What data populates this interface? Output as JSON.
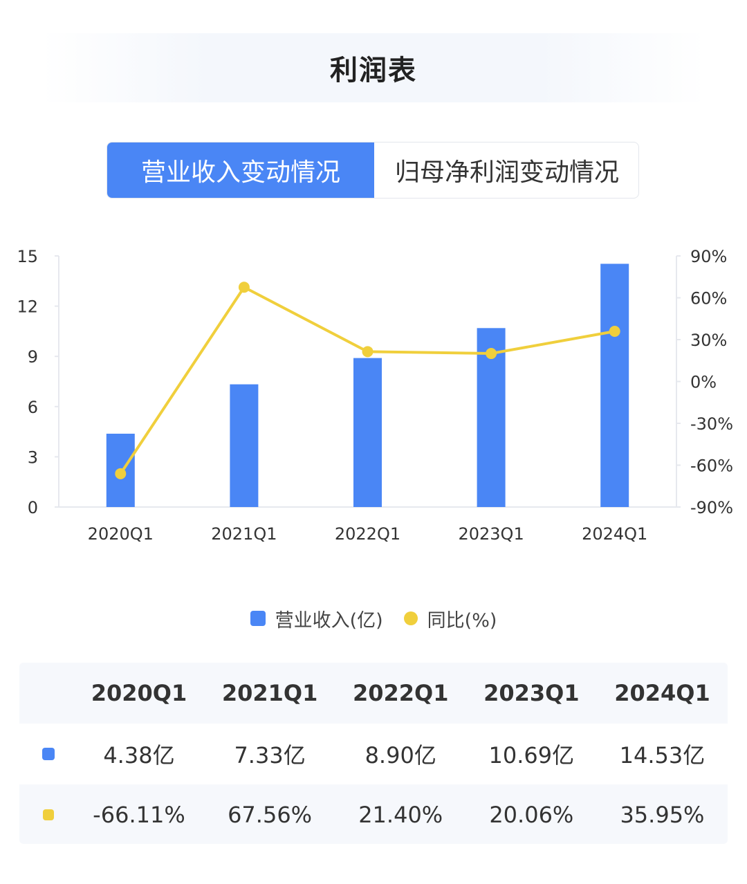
{
  "header": {
    "title": "利润表"
  },
  "tabs": [
    {
      "label": "营业收入变动情况",
      "active": true
    },
    {
      "label": "归母净利润变动情况",
      "active": false
    }
  ],
  "colors": {
    "accent": "#4a86f5",
    "bar": "#4a86f5",
    "line": "#f0cf3c"
  },
  "chart_data": {
    "type": "bar",
    "categories": [
      "2020Q1",
      "2021Q1",
      "2022Q1",
      "2023Q1",
      "2024Q1"
    ],
    "series": [
      {
        "name": "营业收入(亿)",
        "type": "bar",
        "axis": "left",
        "values": [
          4.38,
          7.33,
          8.9,
          10.69,
          14.53
        ]
      },
      {
        "name": "同比(%)",
        "type": "line",
        "axis": "right",
        "values": [
          -66.11,
          67.56,
          21.4,
          20.06,
          35.95
        ]
      }
    ],
    "left_axis": {
      "ticks": [
        "0",
        "3",
        "6",
        "9",
        "12",
        "15"
      ],
      "ylim": [
        0,
        15
      ]
    },
    "right_axis": {
      "ticks": [
        "-90%",
        "-60%",
        "-30%",
        "0%",
        "30%",
        "60%",
        "90%"
      ],
      "ylim": [
        -90,
        90
      ]
    },
    "grid": false,
    "legend": "bottom-center"
  },
  "legend": {
    "bar_label": "营业收入(亿)",
    "line_label": "同比(%)"
  },
  "table": {
    "headers": [
      "2020Q1",
      "2021Q1",
      "2022Q1",
      "2023Q1",
      "2024Q1"
    ],
    "revenue_row": [
      "4.38亿",
      "7.33亿",
      "8.90亿",
      "10.69亿",
      "14.53亿"
    ],
    "yoy_row": [
      "-66.11%",
      "67.56%",
      "21.40%",
      "20.06%",
      "35.95%"
    ]
  }
}
